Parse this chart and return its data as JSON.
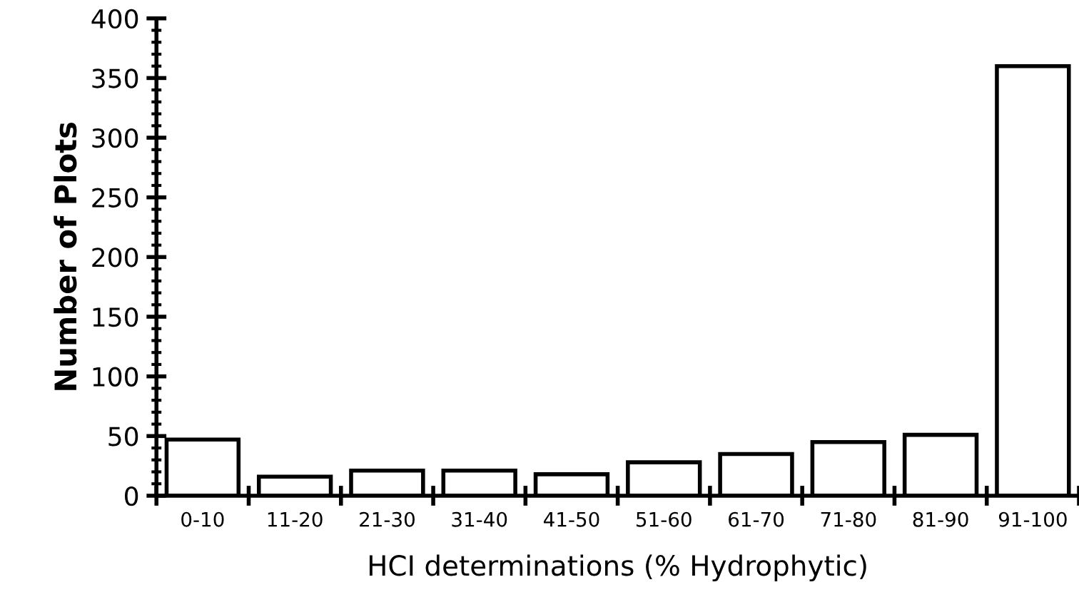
{
  "chart_data": {
    "type": "bar",
    "xlabel": "HCI determinations (% Hydrophytic)",
    "ylabel": "Number of Plots",
    "categories": [
      "0-10",
      "11-20",
      "21-30",
      "31-40",
      "41-50",
      "51-60",
      "61-70",
      "71-80",
      "81-90",
      "91-100"
    ],
    "values": [
      47,
      16,
      21,
      21,
      18,
      28,
      35,
      45,
      51,
      360
    ],
    "color": "#ffffff",
    "ylim": [
      0,
      400
    ],
    "yticks": [
      0,
      50,
      100,
      150,
      200,
      250,
      300,
      350,
      400
    ],
    "grid": false
  }
}
